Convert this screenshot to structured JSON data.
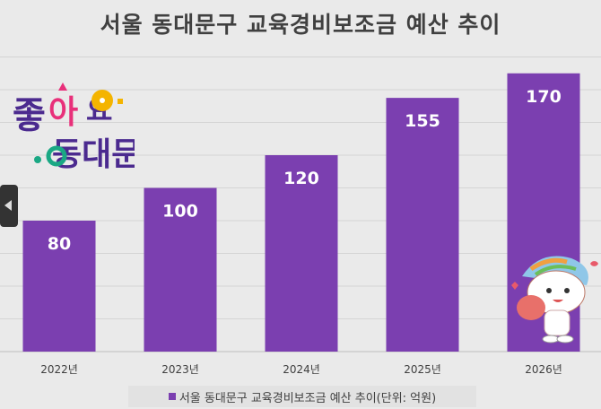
{
  "chart_data": {
    "type": "bar",
    "title": "서울 동대문구 교육경비보조금 예산 추이",
    "categories": [
      "2022년",
      "2023년",
      "2024년",
      "2025년",
      "2026년"
    ],
    "series": [
      {
        "name": "서울 동대문구 교육경비보조금 예산 추이(단위: 억원)",
        "values": [
          80,
          100,
          120,
          155,
          170
        ]
      }
    ],
    "ylim": [
      0,
      180
    ],
    "grid": true,
    "legend": "bottom",
    "bar_color": "#7b3fb0",
    "data_label_color": "#ffffff"
  },
  "logo": {
    "text": "좋아요 동대문"
  },
  "mascot": {
    "icon": "mascot-character"
  },
  "nav": {
    "icon": "chevron-left-icon"
  }
}
